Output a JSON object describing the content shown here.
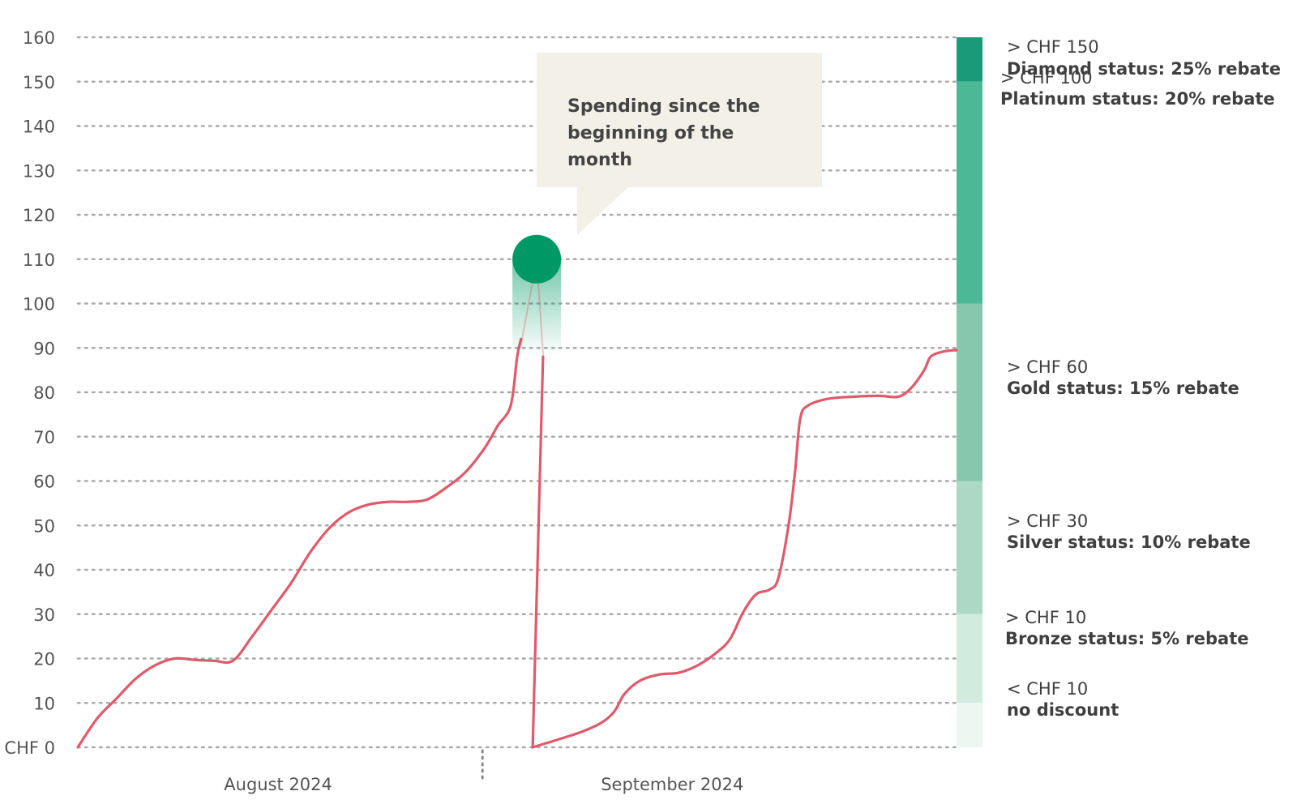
{
  "chart_data": {
    "type": "line",
    "title": "",
    "xlabel": "",
    "ylabel": "",
    "ylim": [
      0,
      160
    ],
    "y_ticks": [
      {
        "value": 0,
        "label": "CHF 0"
      },
      {
        "value": 10,
        "label": "10"
      },
      {
        "value": 20,
        "label": "20"
      },
      {
        "value": 30,
        "label": "30"
      },
      {
        "value": 40,
        "label": "40"
      },
      {
        "value": 50,
        "label": "50"
      },
      {
        "value": 60,
        "label": "60"
      },
      {
        "value": 70,
        "label": "70"
      },
      {
        "value": 80,
        "label": "80"
      },
      {
        "value": 90,
        "label": "90"
      },
      {
        "value": 100,
        "label": "100"
      },
      {
        "value": 110,
        "label": "110"
      },
      {
        "value": 120,
        "label": "120"
      },
      {
        "value": 130,
        "label": "130"
      },
      {
        "value": 140,
        "label": "140"
      },
      {
        "value": 150,
        "label": "150"
      },
      {
        "value": 160,
        "label": "160"
      }
    ],
    "grid": "horizontal-dotted",
    "months": [
      {
        "label": "August 2024",
        "day_range": [
          0,
          31
        ]
      },
      {
        "label": "September 2024",
        "day_range": [
          31,
          61
        ]
      }
    ],
    "series": [
      {
        "color": "#e05a6b",
        "segments": [
          [
            [
              0,
              0
            ],
            [
              1.5,
              6.5
            ],
            [
              3,
              11
            ],
            [
              4.5,
              15.5
            ],
            [
              6,
              18.5
            ],
            [
              7.5,
              20
            ],
            [
              9,
              19.7
            ],
            [
              10.5,
              19.5
            ],
            [
              12,
              19.5
            ],
            [
              13.5,
              25
            ],
            [
              15,
              31
            ],
            [
              16.5,
              37
            ],
            [
              18,
              44
            ],
            [
              19.5,
              49.5
            ],
            [
              21,
              53
            ],
            [
              22.5,
              54.7
            ],
            [
              24,
              55.3
            ],
            [
              25.5,
              55.3
            ],
            [
              27,
              55.8
            ],
            [
              28.5,
              58.5
            ],
            [
              30,
              62
            ],
            [
              31.5,
              67.5
            ],
            [
              32.5,
              72.5
            ],
            [
              33.5,
              77
            ],
            [
              34,
              88
            ],
            [
              34.3,
              92
            ]
          ],
          [
            [
              36,
              88
            ],
            [
              35.2,
              0
            ]
          ],
          [
            [
              35.2,
              0
            ],
            [
              37,
              1.6
            ],
            [
              39,
              3.5
            ],
            [
              40.5,
              5.5
            ],
            [
              41.5,
              8
            ],
            [
              42.3,
              12
            ],
            [
              43.5,
              15
            ],
            [
              45,
              16.4
            ],
            [
              46.5,
              16.8
            ],
            [
              48,
              18.5
            ],
            [
              49.5,
              21.5
            ],
            [
              50.5,
              24.5
            ],
            [
              51.5,
              30.5
            ],
            [
              52.5,
              34.5
            ],
            [
              53.5,
              35.5
            ],
            [
              54.2,
              38
            ],
            [
              55,
              50
            ],
            [
              55.5,
              62
            ],
            [
              55.9,
              74
            ],
            [
              56.5,
              77
            ],
            [
              58,
              78.5
            ],
            [
              60,
              79
            ],
            [
              62,
              79.2
            ],
            [
              63.5,
              79
            ],
            [
              64.5,
              81
            ],
            [
              65.5,
              85
            ],
            [
              66,
              88
            ],
            [
              67,
              89.2
            ],
            [
              68,
              89.5
            ]
          ]
        ]
      }
    ],
    "highlight_marker": {
      "x": 35.2,
      "y": 110,
      "color": "#009966",
      "label": "Spending since the beginning of the month"
    },
    "tiers": [
      {
        "min": 150,
        "max": 160,
        "color": "#1a9a78",
        "threshold": "> CHF 150",
        "name": "Diamond status: 25% rebate"
      },
      {
        "min": 100,
        "max": 150,
        "color": "#4db896",
        "threshold": "> CHF 100",
        "name": "Platinum status: 20% rebate"
      },
      {
        "min": 60,
        "max": 100,
        "color": "#86c7ae",
        "threshold": "> CHF 60",
        "name": "Gold status: 15% rebate"
      },
      {
        "min": 30,
        "max": 60,
        "color": "#acd8c5",
        "threshold": "> CHF 30",
        "name": "Silver status: 10% rebate"
      },
      {
        "min": 10,
        "max": 30,
        "color": "#d2ebdf",
        "threshold": "> CHF 10",
        "name": "Bronze status: 5% rebate"
      },
      {
        "min": 0,
        "max": 10,
        "color": "#eef6f2",
        "threshold": "< CHF 10",
        "name": " no discount"
      }
    ]
  }
}
